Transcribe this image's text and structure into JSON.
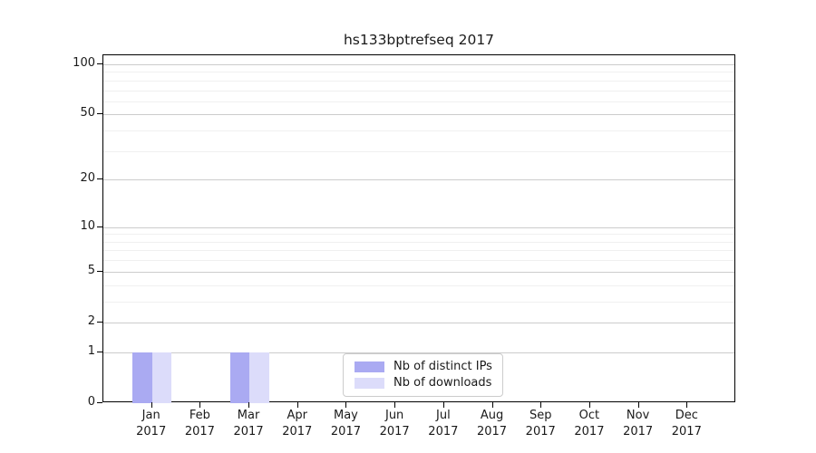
{
  "title": "hs133bptrefseq 2017",
  "colors": {
    "distinct_ips": "#aaaaf2",
    "downloads": "#dcdcfa",
    "grid_major": "#cccccc",
    "grid_minor": "#f0f0f0",
    "axis": "#000000"
  },
  "chart_data": {
    "type": "bar",
    "title": "hs133bptrefseq 2017",
    "categories": [
      "Jan",
      "Feb",
      "Mar",
      "Apr",
      "May",
      "Jun",
      "Jul",
      "Aug",
      "Sep",
      "Oct",
      "Nov",
      "Dec"
    ],
    "category_year": "2017",
    "series": [
      {
        "name": "Nb of distinct IPs",
        "color": "#aaaaf2",
        "values": [
          1,
          0,
          1,
          0,
          0,
          0,
          0,
          0,
          0,
          0,
          0,
          0
        ]
      },
      {
        "name": "Nb of downloads",
        "color": "#dcdcfa",
        "values": [
          1,
          0,
          1,
          0,
          0,
          0,
          0,
          0,
          0,
          0,
          0,
          0
        ]
      }
    ],
    "xlabel": "",
    "ylabel": "",
    "yscale": "log1p",
    "yticks": [
      0,
      1,
      2,
      5,
      10,
      20,
      50,
      100
    ],
    "minor_yticks": [
      3,
      4,
      6,
      7,
      8,
      9,
      30,
      40,
      60,
      70,
      80,
      90
    ],
    "ylim": [
      0,
      113
    ],
    "grid": true,
    "legend_position": "lower center"
  }
}
